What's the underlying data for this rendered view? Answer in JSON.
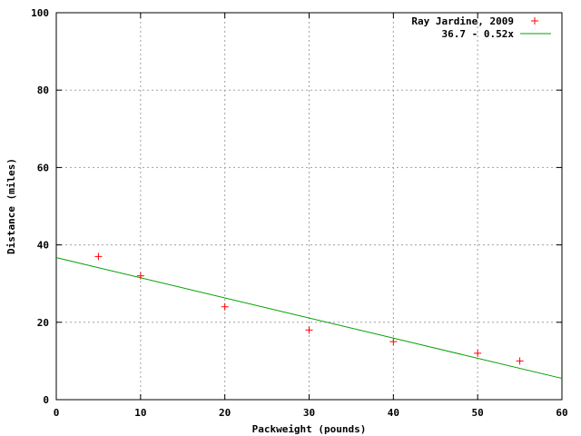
{
  "chart_data": {
    "type": "scatter",
    "title": "",
    "xlabel": "Packweight (pounds)",
    "ylabel": "Distance (miles)",
    "xlim": [
      0,
      60
    ],
    "ylim": [
      0,
      100
    ],
    "xticks": [
      0,
      10,
      20,
      30,
      40,
      50,
      60
    ],
    "yticks": [
      0,
      20,
      40,
      60,
      80,
      100
    ],
    "grid": true,
    "legend_position": "top-right",
    "series": [
      {
        "name": "Ray Jardine, 2009",
        "kind": "points",
        "marker": "+",
        "color": "#ff0000",
        "x": [
          5,
          10,
          20,
          30,
          40,
          50,
          55
        ],
        "y": [
          37,
          32,
          24,
          18,
          15,
          12,
          10
        ]
      },
      {
        "name": "36.7 - 0.52x",
        "kind": "line",
        "color": "#00a000",
        "intercept": 36.7,
        "slope": -0.52
      }
    ]
  }
}
